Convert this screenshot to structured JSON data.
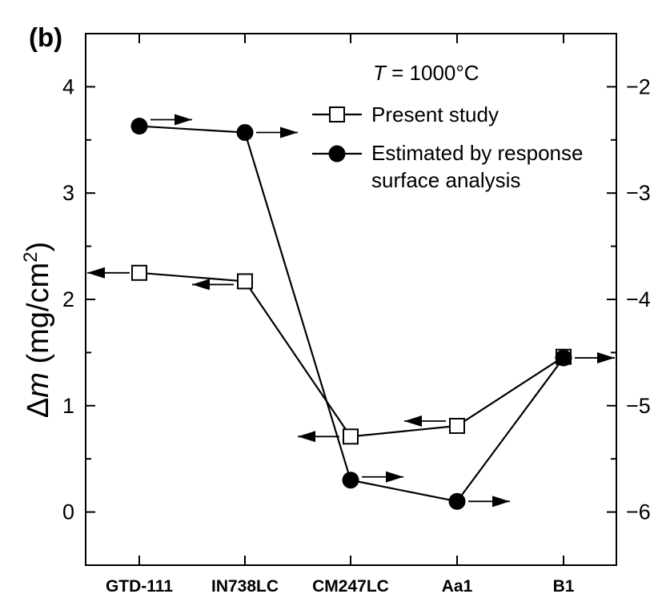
{
  "chart_data": {
    "type": "line",
    "panel_label": "(b)",
    "annotation": {
      "symbol": "T",
      "text": " = 1000°C"
    },
    "ylabel": {
      "prefix": "Δ",
      "symbol": "m",
      "unit": " (mg/cm",
      "sup": "2",
      "close": ")"
    },
    "categories": [
      "GTD-111",
      "IN738LC",
      "CM247LC",
      "Aa1",
      "B1"
    ],
    "y_left": {
      "lim": [
        -0.5,
        4.5
      ],
      "ticks": [
        "0",
        "1",
        "2",
        "3",
        "4"
      ]
    },
    "y_right": {
      "lim": [
        -6.5,
        -1.5
      ],
      "ticks": [
        "−2",
        "−3",
        "−4",
        "−5",
        "−6"
      ]
    },
    "series": [
      {
        "name": "Present study",
        "marker": "open-square",
        "axis": "left",
        "values": [
          2.25,
          2.17,
          0.71,
          0.81,
          1.46
        ]
      },
      {
        "name": "Estimated by response surface analysis",
        "name_lines": [
          "Estimated by response",
          "surface analysis"
        ],
        "marker": "filled-circle",
        "axis": "right",
        "values": [
          -2.37,
          -2.43,
          -5.7,
          -5.9,
          -4.55
        ]
      }
    ],
    "grid": false,
    "legend_position": "top-right"
  }
}
